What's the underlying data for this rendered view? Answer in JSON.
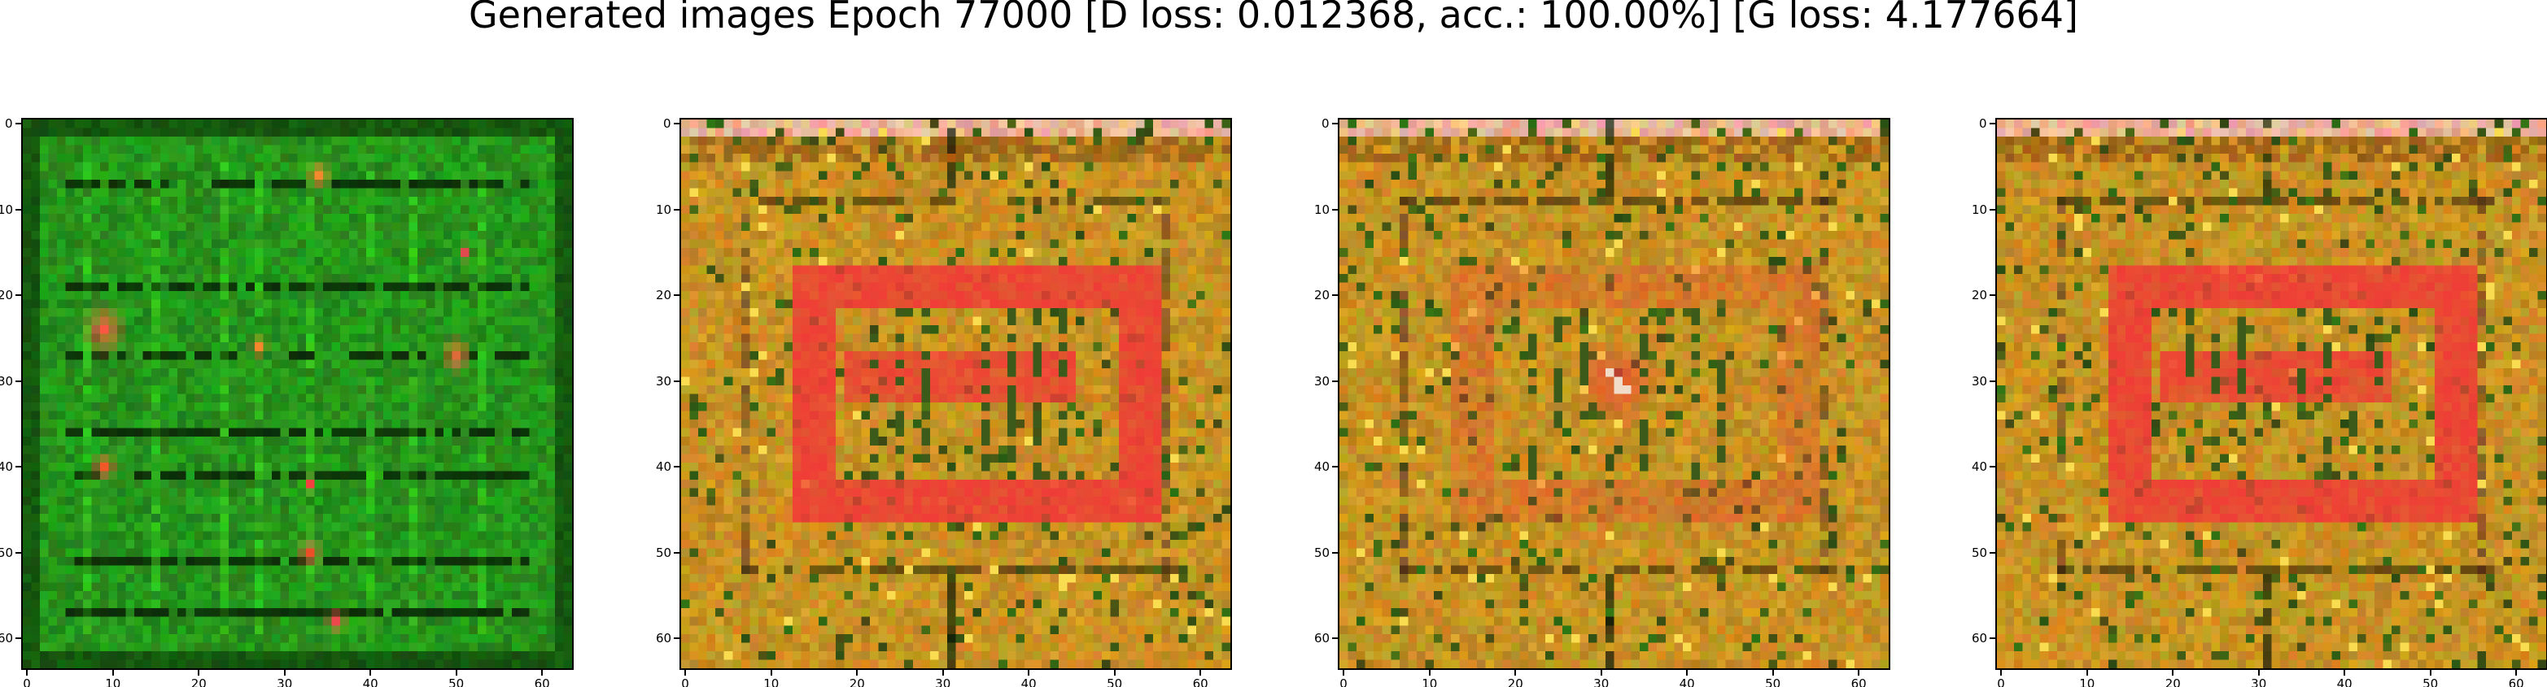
{
  "figure": {
    "suptitle": "Generated images Epoch 77000 [D loss: 0.012368, acc.: 100.00%] [G loss: 4.177664]"
  },
  "chart_data": [
    {
      "type": "heatmap",
      "title": "",
      "xlabel": "",
      "ylabel": "",
      "xlim": [
        -0.5,
        63.5
      ],
      "ylim": [
        63.5,
        -0.5
      ],
      "x_ticks": [
        "0",
        "10",
        "20",
        "30",
        "40",
        "50",
        "60"
      ],
      "y_ticks": [
        "0",
        "10",
        "20",
        "30",
        "40",
        "50",
        "60"
      ],
      "grid": false,
      "dominant_color": "#1f8a1a",
      "accent_color": "#e8343a",
      "description_colors": [
        "#1f8a1a",
        "#0f5a0c",
        "#e8343a",
        "#f0a23a"
      ]
    },
    {
      "type": "heatmap",
      "title": "",
      "xlabel": "",
      "ylabel": "",
      "xlim": [
        -0.5,
        63.5
      ],
      "ylim": [
        63.5,
        -0.5
      ],
      "x_ticks": [
        "0",
        "10",
        "20",
        "30",
        "40",
        "50",
        "60"
      ],
      "y_ticks": [
        "0",
        "10",
        "20",
        "30",
        "40",
        "50",
        "60"
      ],
      "grid": false,
      "dominant_color": "#c48a18",
      "accent_color": "#f03a3a"
    },
    {
      "type": "heatmap",
      "title": "",
      "xlabel": "",
      "ylabel": "",
      "xlim": [
        -0.5,
        63.5
      ],
      "ylim": [
        63.5,
        -0.5
      ],
      "x_ticks": [
        "0",
        "10",
        "20",
        "30",
        "40",
        "50",
        "60"
      ],
      "y_ticks": [
        "0",
        "10",
        "20",
        "30",
        "40",
        "50",
        "60"
      ],
      "grid": false,
      "dominant_color": "#b8901c",
      "accent_color": "#e83030"
    },
    {
      "type": "heatmap",
      "title": "",
      "xlabel": "",
      "ylabel": "",
      "xlim": [
        -0.5,
        63.5
      ],
      "ylim": [
        63.5,
        -0.5
      ],
      "x_ticks": [
        "0",
        "10",
        "20",
        "30",
        "40",
        "50",
        "60"
      ],
      "y_ticks": [
        "0",
        "10",
        "20",
        "30",
        "40",
        "50",
        "60"
      ],
      "grid": false,
      "dominant_color": "#c48a18",
      "accent_color": "#f03a3a"
    }
  ]
}
